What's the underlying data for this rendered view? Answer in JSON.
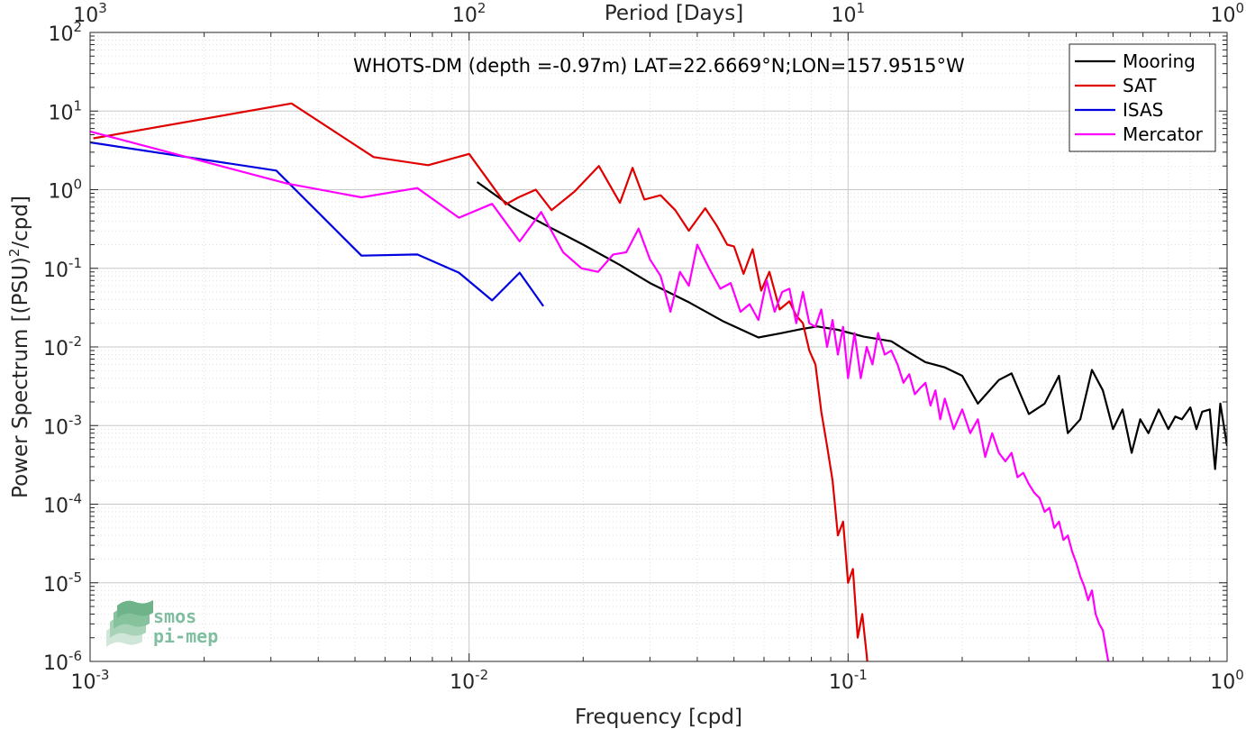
{
  "chart_data": {
    "type": "line",
    "title": "WHOTS-DM (depth =-0.97m) LAT=22.6669°N;LON=157.9515°W",
    "xlabel": "Frequency [cpd]",
    "ylabel_main": "Power Spectrum [(PSU)",
    "ylabel_sup": "2",
    "ylabel_tail": "/cpd]",
    "top_xlabel": "Period [Days]",
    "x_scale": "log",
    "y_scale": "log",
    "xlim": [
      0.001,
      1
    ],
    "ylim": [
      1e-06,
      100
    ],
    "grid": true,
    "legend_position": "top-right",
    "x_ticks": [
      {
        "base": "10",
        "exp": "-3",
        "value": 0.001
      },
      {
        "base": "10",
        "exp": "-2",
        "value": 0.01
      },
      {
        "base": "10",
        "exp": "-1",
        "value": 0.1
      },
      {
        "base": "10",
        "exp": "0",
        "value": 1
      }
    ],
    "y_ticks": [
      {
        "base": "10",
        "exp": "-6",
        "value": 1e-06
      },
      {
        "base": "10",
        "exp": "-5",
        "value": 1e-05
      },
      {
        "base": "10",
        "exp": "-4",
        "value": 0.0001
      },
      {
        "base": "10",
        "exp": "-3",
        "value": 0.001
      },
      {
        "base": "10",
        "exp": "-2",
        "value": 0.01
      },
      {
        "base": "10",
        "exp": "-1",
        "value": 0.1
      },
      {
        "base": "10",
        "exp": "0",
        "value": 1
      },
      {
        "base": "10",
        "exp": "1",
        "value": 10
      },
      {
        "base": "10",
        "exp": "2",
        "value": 100
      }
    ],
    "top_ticks": [
      {
        "base": "10",
        "exp": "3",
        "value": 0.001
      },
      {
        "base": "10",
        "exp": "2",
        "value": 0.01
      },
      {
        "base": "10",
        "exp": "1",
        "value": 0.1
      },
      {
        "base": "10",
        "exp": "0",
        "value": 1
      }
    ],
    "series": [
      {
        "name": "Mooring",
        "color": "#000000",
        "x": [
          0.0105,
          0.013,
          0.016,
          0.02,
          0.025,
          0.03,
          0.038,
          0.047,
          0.058,
          0.066,
          0.075,
          0.083,
          0.094,
          0.11,
          0.13,
          0.145,
          0.16,
          0.18,
          0.2,
          0.22,
          0.25,
          0.27,
          0.3,
          0.33,
          0.36,
          0.38,
          0.41,
          0.44,
          0.47,
          0.5,
          0.53,
          0.56,
          0.59,
          0.62,
          0.66,
          0.7,
          0.73,
          0.76,
          0.8,
          0.83,
          0.86,
          0.9,
          0.93,
          0.96,
          1.0
        ],
        "y": [
          1.25,
          0.6,
          0.35,
          0.2,
          0.11,
          0.065,
          0.037,
          0.021,
          0.0132,
          0.0148,
          0.0168,
          0.0182,
          0.0165,
          0.0135,
          0.0118,
          0.0085,
          0.0064,
          0.0055,
          0.0043,
          0.0019,
          0.0038,
          0.0046,
          0.0014,
          0.0019,
          0.0043,
          0.0008,
          0.0012,
          0.0051,
          0.0028,
          0.0009,
          0.0016,
          0.00045,
          0.0012,
          0.0008,
          0.0016,
          0.0009,
          0.0013,
          0.0012,
          0.0017,
          0.0009,
          0.0015,
          0.0016,
          0.00028,
          0.0019,
          0.00055
        ]
      },
      {
        "name": "SAT",
        "color": "#e00000",
        "x": [
          0.00102,
          0.0034,
          0.0056,
          0.0078,
          0.01,
          0.0125,
          0.0135,
          0.015,
          0.0165,
          0.019,
          0.022,
          0.025,
          0.027,
          0.029,
          0.032,
          0.035,
          0.038,
          0.042,
          0.045,
          0.048,
          0.05,
          0.053,
          0.056,
          0.059,
          0.062,
          0.066,
          0.07,
          0.073,
          0.076,
          0.079,
          0.082,
          0.085,
          0.088,
          0.091,
          0.094,
          0.097,
          0.1,
          0.103,
          0.106,
          0.109,
          0.112,
          0.115
        ],
        "y": [
          4.5,
          12.5,
          2.6,
          2.05,
          2.85,
          0.65,
          0.8,
          1.0,
          0.55,
          0.95,
          2.0,
          0.68,
          1.9,
          0.75,
          0.85,
          0.55,
          0.3,
          0.58,
          0.35,
          0.2,
          0.19,
          0.085,
          0.175,
          0.052,
          0.09,
          0.03,
          0.038,
          0.025,
          0.02,
          0.009,
          0.006,
          0.0015,
          0.00055,
          0.0002,
          4e-05,
          6e-05,
          1e-05,
          1.5e-05,
          2e-06,
          4e-06,
          1.2e-06,
          3e-07
        ]
      },
      {
        "name": "ISAS",
        "color": "#0000e0",
        "x": [
          0.001,
          0.0031,
          0.0052,
          0.0073,
          0.0094,
          0.0115,
          0.0136,
          0.0157
        ],
        "y": [
          4.0,
          1.75,
          0.145,
          0.15,
          0.088,
          0.039,
          0.088,
          0.033
        ]
      },
      {
        "name": "Mercator",
        "color": "#ff00ff",
        "x": [
          0.001,
          0.0033,
          0.0052,
          0.0073,
          0.0094,
          0.0115,
          0.0136,
          0.0155,
          0.0177,
          0.0198,
          0.0219,
          0.024,
          0.026,
          0.028,
          0.03,
          0.032,
          0.034,
          0.036,
          0.038,
          0.04,
          0.043,
          0.046,
          0.049,
          0.052,
          0.055,
          0.058,
          0.061,
          0.064,
          0.067,
          0.07,
          0.073,
          0.076,
          0.079,
          0.082,
          0.085,
          0.088,
          0.091,
          0.094,
          0.097,
          0.1,
          0.104,
          0.108,
          0.112,
          0.116,
          0.12,
          0.125,
          0.13,
          0.135,
          0.14,
          0.145,
          0.15,
          0.155,
          0.16,
          0.165,
          0.17,
          0.175,
          0.18,
          0.19,
          0.2,
          0.21,
          0.22,
          0.23,
          0.24,
          0.25,
          0.26,
          0.27,
          0.28,
          0.29,
          0.3,
          0.31,
          0.32,
          0.33,
          0.34,
          0.35,
          0.36,
          0.37,
          0.38,
          0.39,
          0.4,
          0.41,
          0.42,
          0.43,
          0.44,
          0.45,
          0.46,
          0.47,
          0.48,
          0.49
        ],
        "y": [
          5.5,
          1.2,
          0.8,
          1.05,
          0.44,
          0.66,
          0.22,
          0.52,
          0.16,
          0.1,
          0.09,
          0.15,
          0.16,
          0.32,
          0.13,
          0.08,
          0.028,
          0.09,
          0.06,
          0.2,
          0.1,
          0.055,
          0.065,
          0.028,
          0.035,
          0.022,
          0.07,
          0.028,
          0.05,
          0.055,
          0.02,
          0.05,
          0.02,
          0.018,
          0.03,
          0.01,
          0.022,
          0.008,
          0.018,
          0.004,
          0.015,
          0.004,
          0.01,
          0.006,
          0.015,
          0.008,
          0.009,
          0.006,
          0.0035,
          0.0045,
          0.0025,
          0.003,
          0.0035,
          0.0018,
          0.0028,
          0.0012,
          0.0022,
          0.0009,
          0.0016,
          0.0008,
          0.0012,
          0.0004,
          0.0008,
          0.00045,
          0.00035,
          0.00045,
          0.00022,
          0.00025,
          0.00018,
          0.00014,
          0.00012,
          8e-05,
          9e-05,
          5e-05,
          6e-05,
          3.5e-05,
          4e-05,
          2.5e-05,
          1.8e-05,
          1.2e-05,
          9e-06,
          6e-06,
          8e-06,
          4e-06,
          3e-06,
          2.5e-06,
          1.4e-06,
          8e-07
        ]
      }
    ]
  },
  "legend": {
    "items": [
      {
        "label": "Mooring",
        "color": "#000000"
      },
      {
        "label": "SAT",
        "color": "#e00000"
      },
      {
        "label": "ISAS",
        "color": "#0000e0"
      },
      {
        "label": "Mercator",
        "color": "#ff00ff"
      }
    ]
  },
  "logo": {
    "line1": "smos",
    "line2": "pi-mep"
  }
}
